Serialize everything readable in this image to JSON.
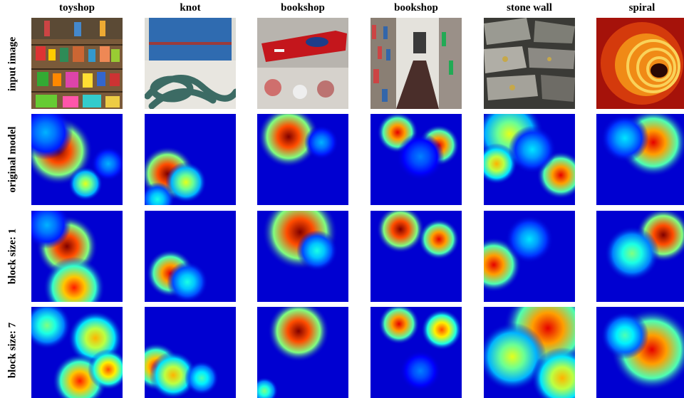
{
  "columns": [
    "toyshop",
    "knot",
    "bookshop",
    "bookshop",
    "stone wall",
    "spiral"
  ],
  "rows": [
    "input image",
    "original model",
    "block size: 1",
    "block size: 7"
  ]
}
